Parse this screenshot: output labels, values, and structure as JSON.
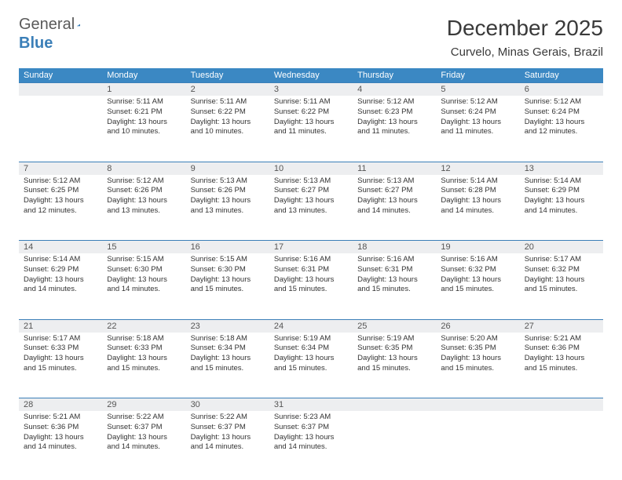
{
  "logo": {
    "text1": "General",
    "text2": "Blue"
  },
  "title": "December 2025",
  "location": "Curvelo, Minas Gerais, Brazil",
  "colors": {
    "header_bg": "#3b88c3",
    "header_text": "#ffffff",
    "row_rule": "#3b7fb8",
    "daynum_bg": "#edeef0",
    "body_text": "#333333",
    "logo_gray": "#5a5a5a",
    "logo_blue": "#3b7fb8"
  },
  "weekdays": [
    "Sunday",
    "Monday",
    "Tuesday",
    "Wednesday",
    "Thursday",
    "Friday",
    "Saturday"
  ],
  "weeks": [
    [
      null,
      {
        "n": "1",
        "sr": "5:11 AM",
        "ss": "6:21 PM",
        "dl": "13 hours and 10 minutes."
      },
      {
        "n": "2",
        "sr": "5:11 AM",
        "ss": "6:22 PM",
        "dl": "13 hours and 10 minutes."
      },
      {
        "n": "3",
        "sr": "5:11 AM",
        "ss": "6:22 PM",
        "dl": "13 hours and 11 minutes."
      },
      {
        "n": "4",
        "sr": "5:12 AM",
        "ss": "6:23 PM",
        "dl": "13 hours and 11 minutes."
      },
      {
        "n": "5",
        "sr": "5:12 AM",
        "ss": "6:24 PM",
        "dl": "13 hours and 11 minutes."
      },
      {
        "n": "6",
        "sr": "5:12 AM",
        "ss": "6:24 PM",
        "dl": "13 hours and 12 minutes."
      }
    ],
    [
      {
        "n": "7",
        "sr": "5:12 AM",
        "ss": "6:25 PM",
        "dl": "13 hours and 12 minutes."
      },
      {
        "n": "8",
        "sr": "5:12 AM",
        "ss": "6:26 PM",
        "dl": "13 hours and 13 minutes."
      },
      {
        "n": "9",
        "sr": "5:13 AM",
        "ss": "6:26 PM",
        "dl": "13 hours and 13 minutes."
      },
      {
        "n": "10",
        "sr": "5:13 AM",
        "ss": "6:27 PM",
        "dl": "13 hours and 13 minutes."
      },
      {
        "n": "11",
        "sr": "5:13 AM",
        "ss": "6:27 PM",
        "dl": "13 hours and 14 minutes."
      },
      {
        "n": "12",
        "sr": "5:14 AM",
        "ss": "6:28 PM",
        "dl": "13 hours and 14 minutes."
      },
      {
        "n": "13",
        "sr": "5:14 AM",
        "ss": "6:29 PM",
        "dl": "13 hours and 14 minutes."
      }
    ],
    [
      {
        "n": "14",
        "sr": "5:14 AM",
        "ss": "6:29 PM",
        "dl": "13 hours and 14 minutes."
      },
      {
        "n": "15",
        "sr": "5:15 AM",
        "ss": "6:30 PM",
        "dl": "13 hours and 14 minutes."
      },
      {
        "n": "16",
        "sr": "5:15 AM",
        "ss": "6:30 PM",
        "dl": "13 hours and 15 minutes."
      },
      {
        "n": "17",
        "sr": "5:16 AM",
        "ss": "6:31 PM",
        "dl": "13 hours and 15 minutes."
      },
      {
        "n": "18",
        "sr": "5:16 AM",
        "ss": "6:31 PM",
        "dl": "13 hours and 15 minutes."
      },
      {
        "n": "19",
        "sr": "5:16 AM",
        "ss": "6:32 PM",
        "dl": "13 hours and 15 minutes."
      },
      {
        "n": "20",
        "sr": "5:17 AM",
        "ss": "6:32 PM",
        "dl": "13 hours and 15 minutes."
      }
    ],
    [
      {
        "n": "21",
        "sr": "5:17 AM",
        "ss": "6:33 PM",
        "dl": "13 hours and 15 minutes."
      },
      {
        "n": "22",
        "sr": "5:18 AM",
        "ss": "6:33 PM",
        "dl": "13 hours and 15 minutes."
      },
      {
        "n": "23",
        "sr": "5:18 AM",
        "ss": "6:34 PM",
        "dl": "13 hours and 15 minutes."
      },
      {
        "n": "24",
        "sr": "5:19 AM",
        "ss": "6:34 PM",
        "dl": "13 hours and 15 minutes."
      },
      {
        "n": "25",
        "sr": "5:19 AM",
        "ss": "6:35 PM",
        "dl": "13 hours and 15 minutes."
      },
      {
        "n": "26",
        "sr": "5:20 AM",
        "ss": "6:35 PM",
        "dl": "13 hours and 15 minutes."
      },
      {
        "n": "27",
        "sr": "5:21 AM",
        "ss": "6:36 PM",
        "dl": "13 hours and 15 minutes."
      }
    ],
    [
      {
        "n": "28",
        "sr": "5:21 AM",
        "ss": "6:36 PM",
        "dl": "13 hours and 14 minutes."
      },
      {
        "n": "29",
        "sr": "5:22 AM",
        "ss": "6:37 PM",
        "dl": "13 hours and 14 minutes."
      },
      {
        "n": "30",
        "sr": "5:22 AM",
        "ss": "6:37 PM",
        "dl": "13 hours and 14 minutes."
      },
      {
        "n": "31",
        "sr": "5:23 AM",
        "ss": "6:37 PM",
        "dl": "13 hours and 14 minutes."
      },
      null,
      null,
      null
    ]
  ],
  "labels": {
    "sunrise": "Sunrise: ",
    "sunset": "Sunset: ",
    "daylight": "Daylight: "
  }
}
